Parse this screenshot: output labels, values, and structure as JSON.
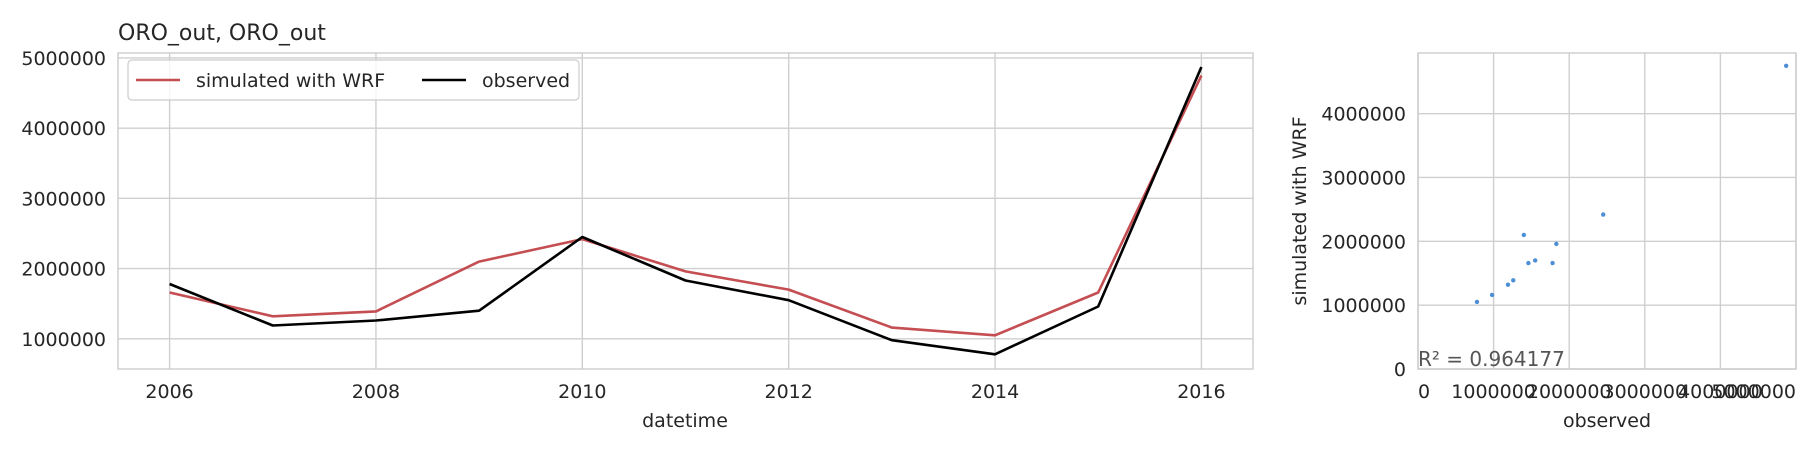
{
  "title": "ORO_out, ORO_out",
  "colors": {
    "simulated": "#c44e52",
    "observed": "#000000",
    "scatter": "#4c8fd6"
  },
  "chart_data": [
    {
      "type": "line",
      "xlabel": "datetime",
      "ylabel": "",
      "x": [
        2006,
        2007,
        2008,
        2009,
        2010,
        2011,
        2012,
        2013,
        2014,
        2015,
        2016
      ],
      "x_ticks": [
        2006,
        2008,
        2010,
        2012,
        2014,
        2016
      ],
      "x_tick_labels": [
        "2006",
        "2008",
        "2010",
        "2012",
        "2014",
        "2016"
      ],
      "xlim": [
        2005.5,
        2016.5
      ],
      "ylim": [
        570000,
        5070000
      ],
      "y_ticks": [
        1000000,
        2000000,
        3000000,
        4000000,
        5000000
      ],
      "y_tick_labels": [
        "1000000",
        "2000000",
        "3000000",
        "4000000",
        "5000000"
      ],
      "grid": true,
      "legend": "top-left",
      "series": [
        {
          "name": "simulated with WRF",
          "color": "#c44e52",
          "values": [
            1660000,
            1320000,
            1390000,
            2100000,
            2420000,
            1960000,
            1700000,
            1160000,
            1050000,
            1660000,
            4750000
          ]
        },
        {
          "name": "observed",
          "color": "#000000",
          "values": [
            1780000,
            1190000,
            1260000,
            1400000,
            2450000,
            1830000,
            1550000,
            980000,
            780000,
            1460000,
            4870000
          ]
        }
      ]
    },
    {
      "type": "scatter",
      "xlabel": "observed",
      "ylabel": "simulated with WRF",
      "xlim": [
        0,
        5000000
      ],
      "ylim": [
        0,
        4950000
      ],
      "x_ticks": [
        0,
        1000000,
        2000000,
        3000000,
        4000000,
        5000000
      ],
      "x_tick_labels": [
        "0",
        "1000000",
        "2000000",
        "3000000",
        "4000000",
        "5000000"
      ],
      "y_ticks": [
        0,
        1000000,
        2000000,
        3000000,
        4000000
      ],
      "y_tick_labels": [
        "0",
        "1000000",
        "2000000",
        "3000000",
        "4000000"
      ],
      "grid": true,
      "annotation": "R² = 0.964177",
      "points": [
        {
          "x": 780000,
          "y": 1050000
        },
        {
          "x": 980000,
          "y": 1160000
        },
        {
          "x": 1190000,
          "y": 1320000
        },
        {
          "x": 1260000,
          "y": 1390000
        },
        {
          "x": 1400000,
          "y": 2100000
        },
        {
          "x": 1460000,
          "y": 1660000
        },
        {
          "x": 1550000,
          "y": 1700000
        },
        {
          "x": 1780000,
          "y": 1660000
        },
        {
          "x": 1830000,
          "y": 1960000
        },
        {
          "x": 2450000,
          "y": 2420000
        },
        {
          "x": 4870000,
          "y": 4750000
        }
      ]
    }
  ]
}
